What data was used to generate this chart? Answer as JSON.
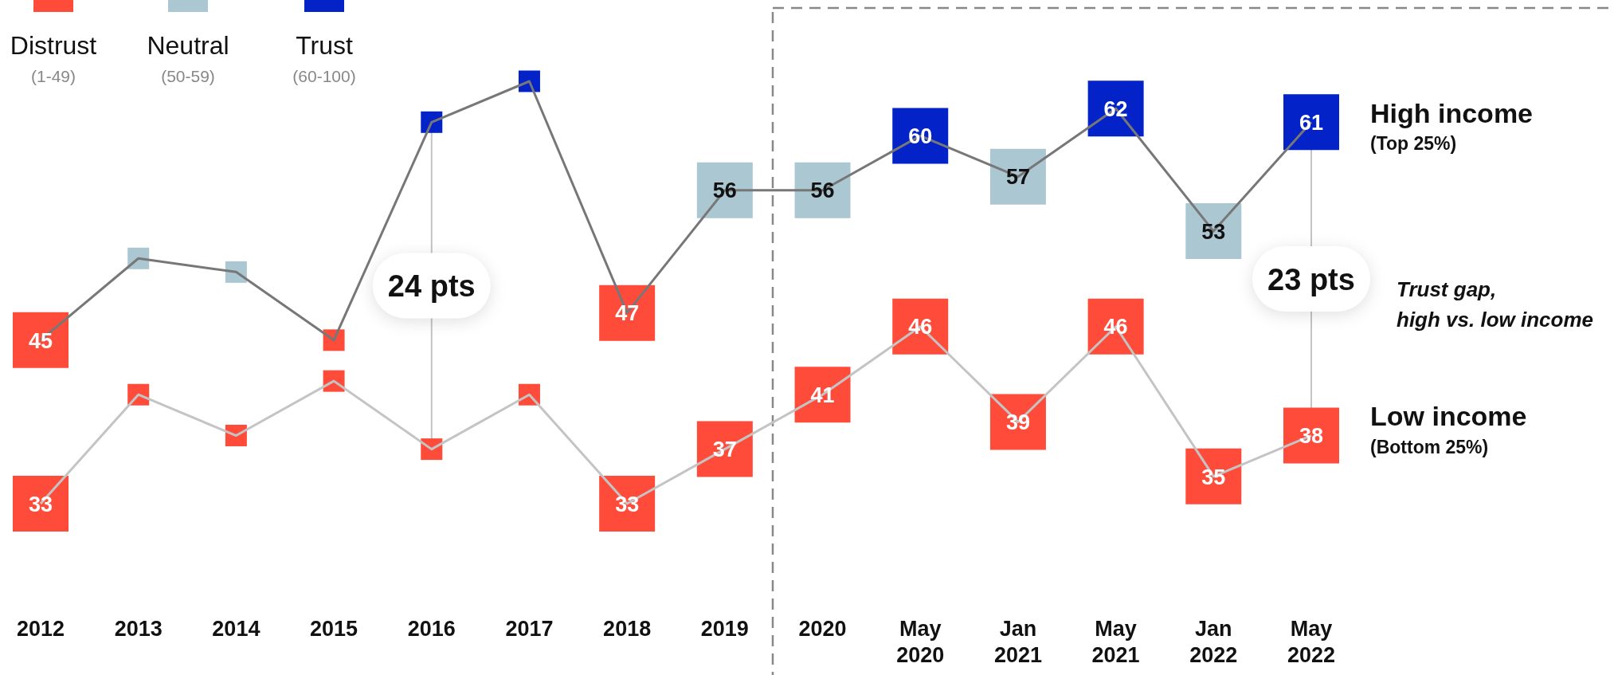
{
  "chart_data": {
    "type": "line",
    "categories": [
      "2012",
      "2013",
      "2014",
      "2015",
      "2016",
      "2017",
      "2018",
      "2019",
      "2020",
      "May 2020",
      "Jan 2021",
      "May 2021",
      "Jan 2022",
      "May 2022"
    ],
    "tick_labels": "x",
    "annotations": [
      "Distrust",
      "(1-49)",
      "Neutral",
      "(50-59)",
      "Trust",
      "(60-100)",
      "(Top 25%)",
      "(Bottom 25%)",
      "Trust gap, high vs. low income",
      "24 pts",
      "23 pts"
    ],
    "series": [
      {
        "name": "High income",
        "color": "#777777",
        "values": [
          45,
          51,
          50,
          45,
          61,
          64,
          47,
          56,
          56,
          60,
          57,
          62,
          53,
          61
        ],
        "colors": [
          "#ff4b3a",
          "#abc8d2",
          "#abc8d2",
          "#ff4b3a",
          "#0323c8",
          "#0323c8",
          "#ff4b3a",
          "#abc8d2",
          "#abc8d2",
          "#0323c8",
          "#abc8d2",
          "#0323c8",
          "#abc8d2",
          "#0323c8"
        ],
        "value_labels": [
          "45",
          null,
          null,
          null,
          null,
          null,
          "47",
          "56",
          "56",
          "60",
          "57",
          "62",
          "53",
          "61"
        ]
      },
      {
        "name": "Low income",
        "color": "#c4c4c4",
        "values": [
          33,
          41,
          38,
          42,
          37,
          41,
          33,
          37,
          41,
          46,
          39,
          46,
          35,
          38
        ],
        "colors": [
          "#ff4b3a",
          "#ff4b3a",
          "#ff4b3a",
          "#ff4b3a",
          "#ff4b3a",
          "#ff4b3a",
          "#ff4b3a",
          "#ff4b3a",
          "#ff4b3a",
          "#ff4b3a",
          "#ff4b3a",
          "#ff4b3a",
          "#ff4b3a",
          "#ff4b3a"
        ],
        "value_labels": [
          "33",
          null,
          null,
          null,
          null,
          null,
          "33",
          "37",
          "41",
          "46",
          "39",
          "46",
          "35",
          "38"
        ]
      }
    ]
  }
}
